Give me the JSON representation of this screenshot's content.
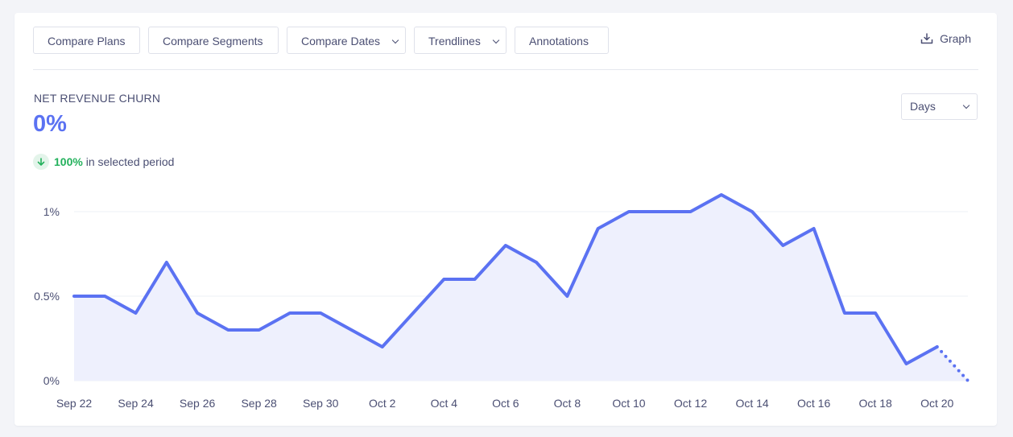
{
  "toolbar": {
    "compare_plans": "Compare Plans",
    "compare_segments": "Compare Segments",
    "compare_dates": "Compare Dates",
    "trendlines": "Trendlines",
    "annotations": "Annotations",
    "graph": "Graph"
  },
  "metric": {
    "title": "NET REVENUE CHURN",
    "value": "0%",
    "delta_pct": "100%",
    "delta_text": "in selected period",
    "delta_direction": "down"
  },
  "interval_select": {
    "value": "Days"
  },
  "colors": {
    "accent": "#5b72f2",
    "positive": "#23b15c",
    "fill": "#eef0fd"
  },
  "chart_data": {
    "type": "area",
    "x": [
      "Sep 22",
      "Sep 23",
      "Sep 24",
      "Sep 25",
      "Sep 26",
      "Sep 27",
      "Sep 28",
      "Sep 29",
      "Sep 30",
      "Oct 1",
      "Oct 2",
      "Oct 3",
      "Oct 4",
      "Oct 5",
      "Oct 6",
      "Oct 7",
      "Oct 8",
      "Oct 9",
      "Oct 10",
      "Oct 11",
      "Oct 12",
      "Oct 13",
      "Oct 14",
      "Oct 15",
      "Oct 16",
      "Oct 17",
      "Oct 18",
      "Oct 19",
      "Oct 20",
      "Oct 21"
    ],
    "x_tick_labels": [
      "Sep 22",
      "Sep 24",
      "Sep 26",
      "Sep 28",
      "Sep 30",
      "Oct 2",
      "Oct 4",
      "Oct 6",
      "Oct 8",
      "Oct 10",
      "Oct 12",
      "Oct 14",
      "Oct 16",
      "Oct 18",
      "Oct 20"
    ],
    "series": [
      {
        "values": [
          0.5,
          0.5,
          0.4,
          0.7,
          0.4,
          0.3,
          0.3,
          0.4,
          0.4,
          0.3,
          0.2,
          0.4,
          0.6,
          0.6,
          0.8,
          0.7,
          0.5,
          0.9,
          1.0,
          1.0,
          1.0,
          1.1,
          1.0,
          0.8,
          0.9,
          0.4,
          0.4,
          0.1,
          0.2,
          0.0
        ]
      }
    ],
    "incomplete_last_point": true,
    "y_ticks": [
      "0%",
      "0.5%",
      "1%"
    ],
    "y_tick_values": [
      0,
      0.5,
      1
    ],
    "ylim": [
      0,
      1.1
    ],
    "grid": true
  }
}
